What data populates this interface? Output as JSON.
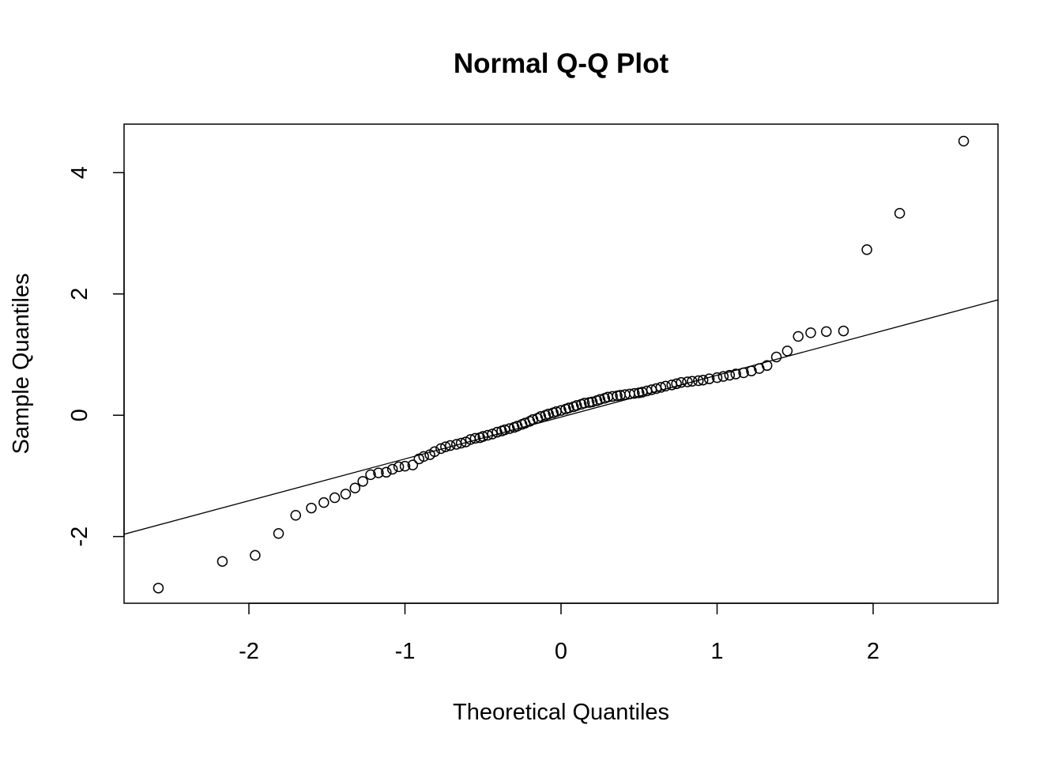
{
  "chart_data": {
    "type": "scatter",
    "title": "Normal Q-Q Plot",
    "xlabel": "Theoretical Quantiles",
    "ylabel": "Sample Quantiles",
    "xlim": [
      -2.8,
      2.8
    ],
    "ylim": [
      -3.1,
      4.8
    ],
    "xticks": [
      -2,
      -1,
      0,
      1,
      2
    ],
    "yticks": [
      -2,
      0,
      2,
      4
    ],
    "x_tick_labels": [
      "-2",
      "-1",
      "0",
      "1",
      "2"
    ],
    "y_tick_labels": [
      "-2",
      "0",
      "2",
      "4"
    ],
    "grid": false,
    "reference_line": {
      "slope": 0.69,
      "intercept": -0.03
    },
    "points": [
      [
        -2.58,
        -2.85
      ],
      [
        -2.17,
        -2.41
      ],
      [
        -1.96,
        -2.31
      ],
      [
        -1.81,
        -1.95
      ],
      [
        -1.7,
        -1.65
      ],
      [
        -1.6,
        -1.53
      ],
      [
        -1.52,
        -1.44
      ],
      [
        -1.45,
        -1.36
      ],
      [
        -1.38,
        -1.3
      ],
      [
        -1.32,
        -1.2
      ],
      [
        -1.27,
        -1.09
      ],
      [
        -1.22,
        -0.98
      ],
      [
        -1.17,
        -0.95
      ],
      [
        -1.12,
        -0.94
      ],
      [
        -1.08,
        -0.89
      ],
      [
        -1.04,
        -0.85
      ],
      [
        -1.0,
        -0.84
      ],
      [
        -0.95,
        -0.82
      ],
      [
        -0.91,
        -0.72
      ],
      [
        -0.88,
        -0.68
      ],
      [
        -0.84,
        -0.65
      ],
      [
        -0.81,
        -0.6
      ],
      [
        -0.77,
        -0.55
      ],
      [
        -0.74,
        -0.52
      ],
      [
        -0.71,
        -0.5
      ],
      [
        -0.67,
        -0.48
      ],
      [
        -0.64,
        -0.46
      ],
      [
        -0.61,
        -0.44
      ],
      [
        -0.58,
        -0.4
      ],
      [
        -0.55,
        -0.38
      ],
      [
        -0.52,
        -0.37
      ],
      [
        -0.5,
        -0.35
      ],
      [
        -0.47,
        -0.33
      ],
      [
        -0.44,
        -0.31
      ],
      [
        -0.41,
        -0.28
      ],
      [
        -0.38,
        -0.26
      ],
      [
        -0.36,
        -0.24
      ],
      [
        -0.33,
        -0.22
      ],
      [
        -0.3,
        -0.2
      ],
      [
        -0.28,
        -0.18
      ],
      [
        -0.25,
        -0.15
      ],
      [
        -0.23,
        -0.13
      ],
      [
        -0.2,
        -0.1
      ],
      [
        -0.18,
        -0.07
      ],
      [
        -0.15,
        -0.05
      ],
      [
        -0.13,
        -0.02
      ],
      [
        -0.1,
        0.0
      ],
      [
        -0.08,
        0.02
      ],
      [
        -0.05,
        0.04
      ],
      [
        -0.03,
        0.06
      ],
      [
        0.0,
        0.08
      ],
      [
        0.03,
        0.1
      ],
      [
        0.05,
        0.12
      ],
      [
        0.08,
        0.14
      ],
      [
        0.1,
        0.16
      ],
      [
        0.13,
        0.18
      ],
      [
        0.15,
        0.2
      ],
      [
        0.18,
        0.21
      ],
      [
        0.2,
        0.22
      ],
      [
        0.23,
        0.24
      ],
      [
        0.25,
        0.26
      ],
      [
        0.28,
        0.28
      ],
      [
        0.3,
        0.3
      ],
      [
        0.33,
        0.31
      ],
      [
        0.36,
        0.32
      ],
      [
        0.38,
        0.33
      ],
      [
        0.41,
        0.34
      ],
      [
        0.44,
        0.35
      ],
      [
        0.47,
        0.36
      ],
      [
        0.5,
        0.37
      ],
      [
        0.52,
        0.38
      ],
      [
        0.55,
        0.4
      ],
      [
        0.58,
        0.42
      ],
      [
        0.61,
        0.44
      ],
      [
        0.64,
        0.46
      ],
      [
        0.67,
        0.48
      ],
      [
        0.71,
        0.5
      ],
      [
        0.74,
        0.52
      ],
      [
        0.77,
        0.54
      ],
      [
        0.81,
        0.55
      ],
      [
        0.84,
        0.56
      ],
      [
        0.88,
        0.57
      ],
      [
        0.91,
        0.58
      ],
      [
        0.95,
        0.6
      ],
      [
        1.0,
        0.62
      ],
      [
        1.04,
        0.64
      ],
      [
        1.08,
        0.66
      ],
      [
        1.12,
        0.68
      ],
      [
        1.17,
        0.7
      ],
      [
        1.22,
        0.73
      ],
      [
        1.27,
        0.77
      ],
      [
        1.32,
        0.82
      ],
      [
        1.38,
        0.96
      ],
      [
        1.45,
        1.06
      ],
      [
        1.52,
        1.3
      ],
      [
        1.6,
        1.36
      ],
      [
        1.7,
        1.38
      ],
      [
        1.81,
        1.39
      ],
      [
        1.96,
        2.73
      ],
      [
        2.17,
        3.33
      ],
      [
        2.58,
        4.52
      ]
    ]
  }
}
